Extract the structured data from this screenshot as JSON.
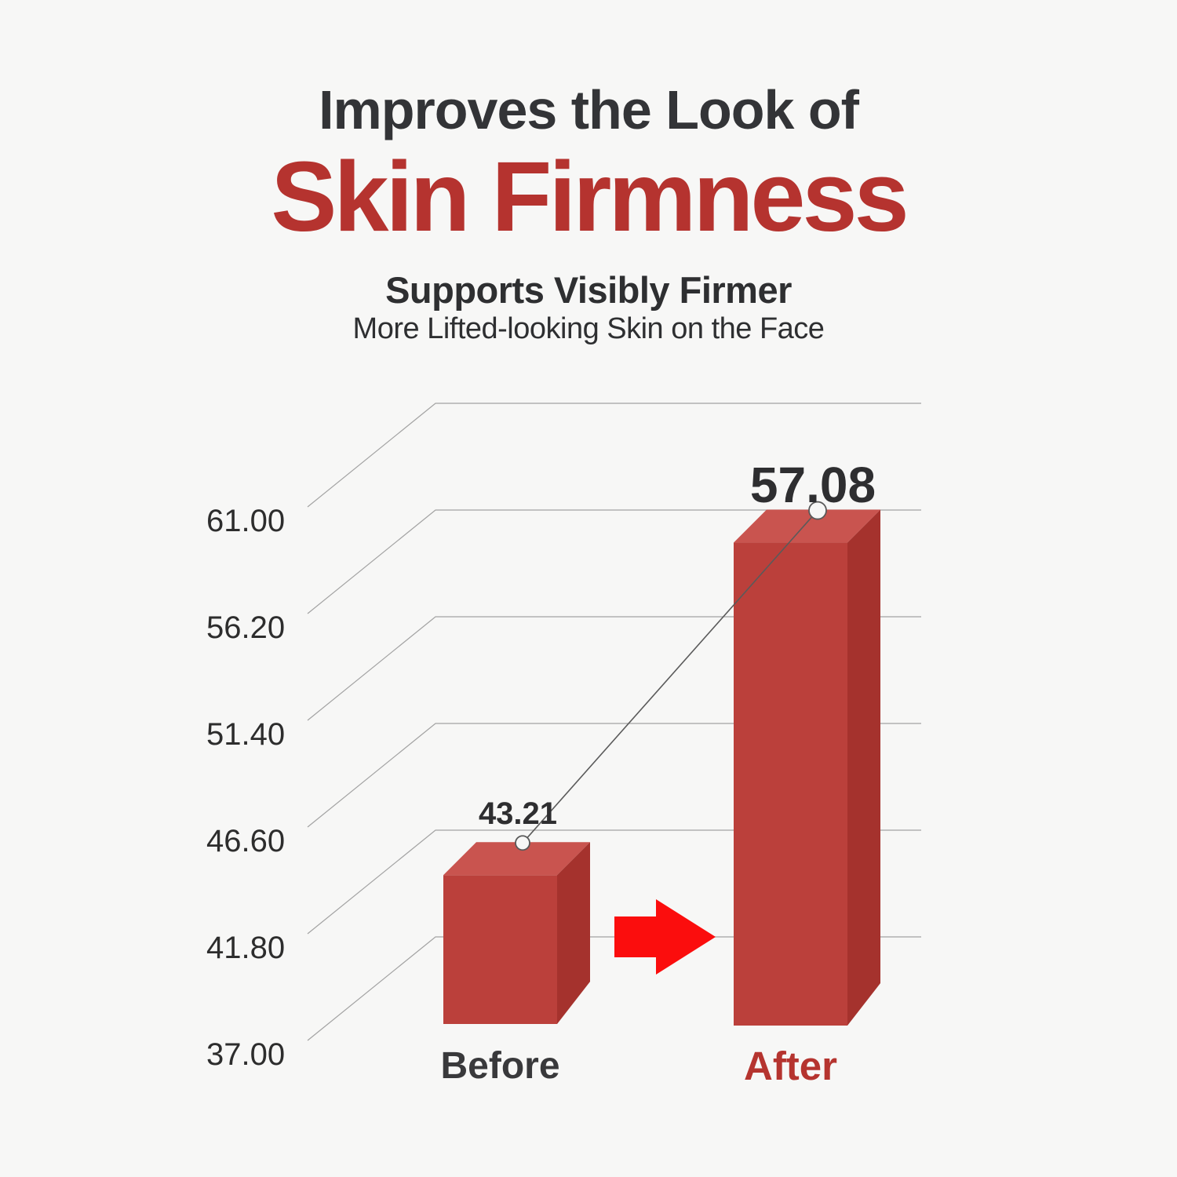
{
  "header": {
    "title_line1": "Improves the Look of",
    "title_line2": "Skin Firmness",
    "subtitle_bold": "Supports Visibly Firmer",
    "subtitle_regular": "More Lifted-looking Skin on the Face"
  },
  "colors": {
    "background": "#f7f7f6",
    "title_dark": "#333437",
    "title_red": "#b5332f",
    "bar_front": "#bb403b",
    "bar_top": "#c9544f",
    "bar_side": "#a5322d",
    "arrow_red": "#fb0d0d",
    "grid_line": "#a3a3a3",
    "trend_line": "#5a5a5a",
    "tick_text": "#2d2d2d",
    "value_text": "#2e2e30",
    "before_label": "#39393b",
    "after_label": "#b5342f"
  },
  "chart_data": {
    "type": "bar",
    "variant": "3d-perspective",
    "title": "Skin Firmness Before vs After",
    "categories": [
      "Before",
      "After"
    ],
    "values": [
      43.21,
      57.08
    ],
    "value_labels": [
      "43.21",
      "57.08"
    ],
    "y_tick_labels": [
      "61.00",
      "56.20",
      "51.40",
      "46.60",
      "41.80",
      "37.00"
    ],
    "ylim": [
      37.0,
      61.0
    ],
    "tick_step": 4.8,
    "grid": "on",
    "legend": "none",
    "annotations": {
      "trend_line_between_bars": true,
      "markers": "open-circle",
      "arrow_between_bars": {
        "icon": "arrow-right-icon",
        "color": "#fb0d0d"
      }
    }
  }
}
